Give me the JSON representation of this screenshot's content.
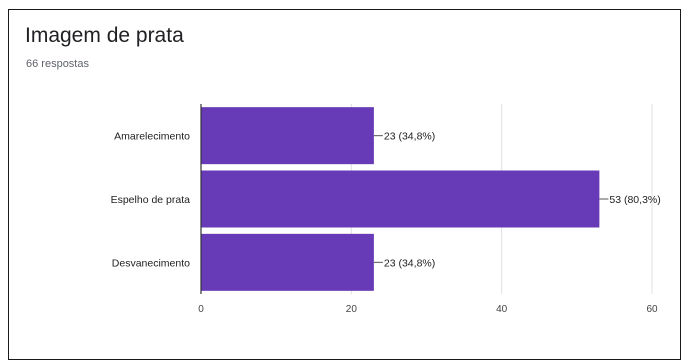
{
  "card": {
    "title": "Imagem de prata",
    "subtitle": "66 respostas"
  },
  "colors": {
    "bar": "#673ab7",
    "axis": "#333333",
    "grid": "#e0e0e0"
  },
  "chart_data": {
    "type": "bar",
    "orientation": "horizontal",
    "categories": [
      "Amarelecimento",
      "Espelho de prata",
      "Desvanecimento"
    ],
    "values": [
      23,
      53,
      23
    ],
    "data_labels": [
      "23 (34,8%)",
      "53 (80,3%)",
      "23 (34,8%)"
    ],
    "xticks": [
      "0",
      "20",
      "40",
      "60"
    ],
    "xlim": [
      0,
      60
    ],
    "grid": true
  }
}
